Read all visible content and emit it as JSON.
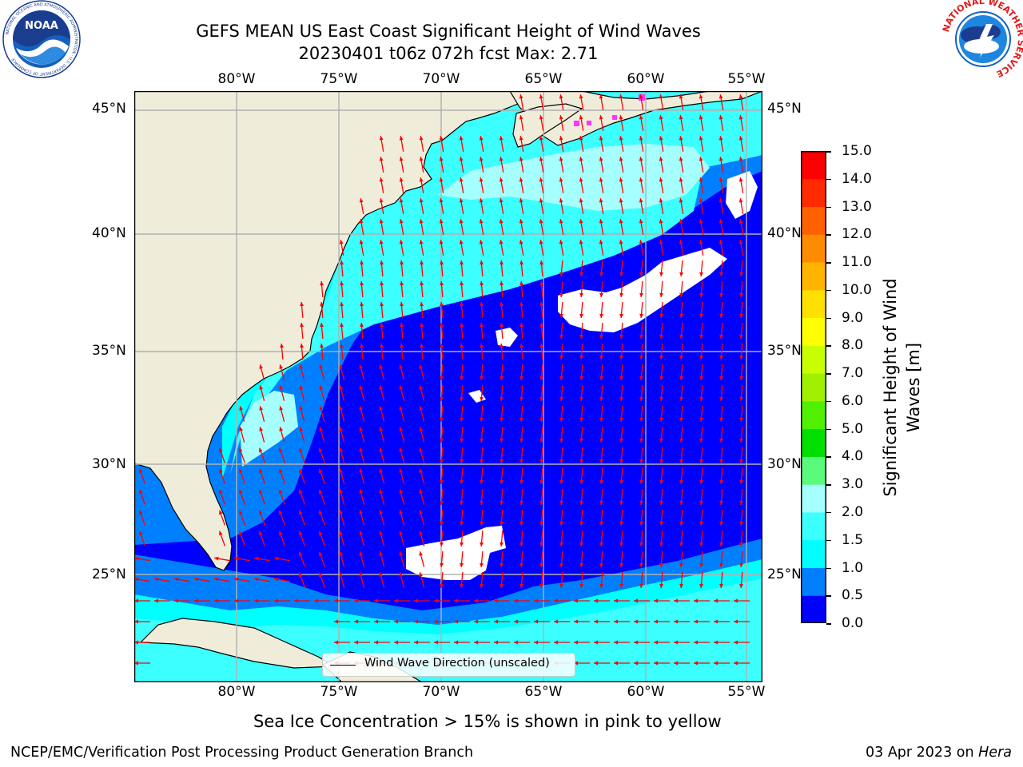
{
  "title": {
    "line1": "GEFS MEAN US East Coast Significant Height of Wind Waves",
    "line2": "20230401 t06z 072h fcst   Max: 2.71"
  },
  "logos": {
    "left": {
      "name": "noaa-logo",
      "text": "NOAA",
      "ring_text": "NATIONAL OCEANIC AND ATMOSPHERIC ADMINISTRATION · U.S. DEPARTMENT OF COMMERCE"
    },
    "right": {
      "name": "national-weather-service-logo",
      "ring_text": "NATIONAL WEATHER SERVICE"
    }
  },
  "map": {
    "lon_ticks": [
      "80°W",
      "75°W",
      "70°W",
      "65°W",
      "60°W",
      "55°W"
    ],
    "lat_ticks": [
      "45°N",
      "40°N",
      "35°N",
      "30°N",
      "25°N"
    ],
    "legend_label": "Wind Wave Direction (unscaled)",
    "colors": {
      "land": "#efedda",
      "ocean_0_05": "#0000ff",
      "ocean_05_10": "#0080ff",
      "ocean_10_15": "#00ffff",
      "ocean_15_20": "#3cffff",
      "ocean_20_30": "#a6ffff",
      "arrows": "#ff0000",
      "grid": "#b0b0b0",
      "sea_ice": "#ff33ff"
    }
  },
  "colorbar": {
    "title": "Significant Height of Wind Waves [m]",
    "ticks": [
      "15.0",
      "14.0",
      "13.0",
      "12.0",
      "11.0",
      "10.0",
      "9.0",
      "8.0",
      "7.0",
      "6.0",
      "5.0",
      "4.0",
      "3.0",
      "2.0",
      "1.5",
      "1.0",
      "0.5",
      "0.0"
    ],
    "colors": [
      "#0000ff",
      "#0080ff",
      "#00ffff",
      "#3cffff",
      "#a6ffff",
      "#5afa7d",
      "#00e000",
      "#50f000",
      "#a0f000",
      "#c8ff00",
      "#ffff00",
      "#ffe000",
      "#ffb400",
      "#ff8c00",
      "#ff6000",
      "#ff2a00",
      "#ff0000"
    ]
  },
  "sea_ice_note": "Sea Ice Concentration > 15% is shown in pink to yellow",
  "footer": {
    "left": "NCEP/EMC/Verification Post Processing Product Generation Branch",
    "date": "03 Apr 2023 on ",
    "machine": "Hera"
  }
}
